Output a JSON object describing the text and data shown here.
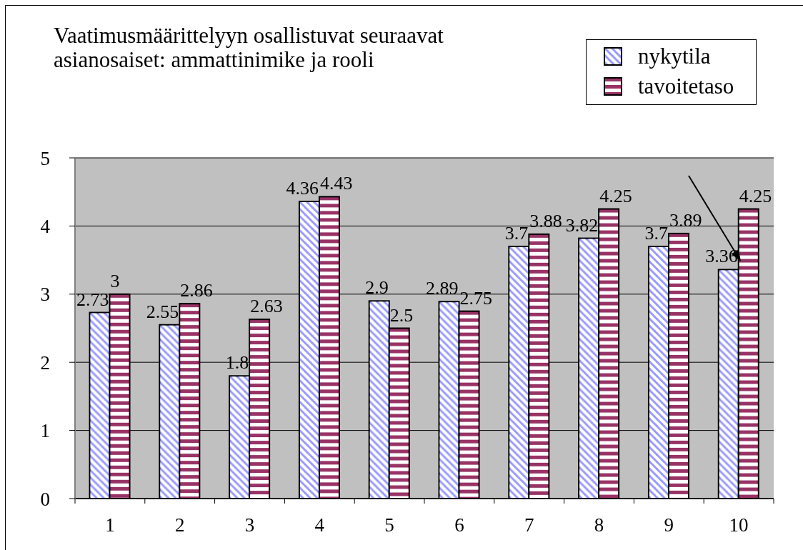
{
  "chart_data": {
    "type": "bar",
    "title": "Vaatimusmäärittelyyn osallistuvat seuraavat asianosaiset: ammattinimike ja rooli",
    "categories": [
      "1",
      "2",
      "3",
      "4",
      "5",
      "6",
      "7",
      "8",
      "9",
      "10"
    ],
    "series": [
      {
        "name": "nykytila",
        "color": "#9999ff",
        "values": [
          2.73,
          2.55,
          1.8,
          4.36,
          2.9,
          2.89,
          3.7,
          3.82,
          3.7,
          3.36
        ]
      },
      {
        "name": "tavoitetaso",
        "color": "#993366",
        "values": [
          3,
          2.86,
          2.63,
          4.43,
          2.5,
          2.75,
          3.88,
          4.25,
          3.89,
          4.25
        ]
      }
    ],
    "ylim": [
      0,
      5
    ],
    "yticks": [
      0,
      1,
      2,
      3,
      4,
      5
    ],
    "grid": "y",
    "legend": "top right",
    "data_labels": true
  }
}
